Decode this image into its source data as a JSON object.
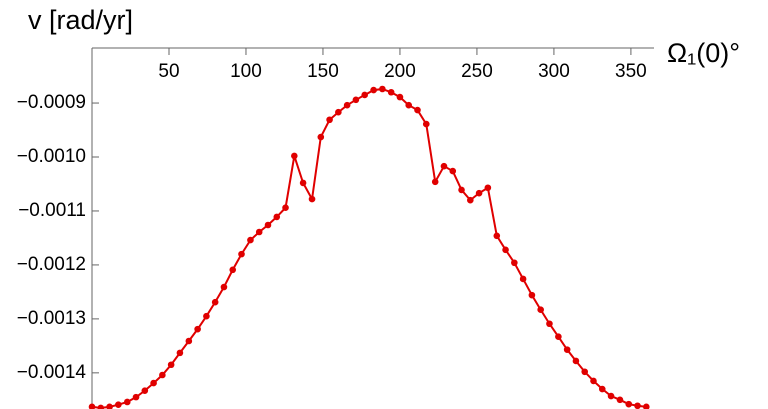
{
  "chart_data": {
    "type": "line",
    "ylabel": "v [rad/yr]",
    "xlabel": "Ω₁(0)°",
    "x": [
      0,
      5.7,
      11.4,
      17.1,
      22.9,
      28.6,
      34.3,
      40,
      45.7,
      51.4,
      57.1,
      62.9,
      68.6,
      74.3,
      80,
      85.7,
      91.4,
      97.1,
      102.9,
      108.6,
      114.3,
      120,
      125.7,
      131.4,
      137.1,
      142.9,
      148.6,
      154.3,
      160,
      165.7,
      171.4,
      177.1,
      182.9,
      188.6,
      194.3,
      200,
      205.7,
      211.4,
      217.1,
      222.9,
      228.6,
      234.3,
      240,
      245.7,
      251.4,
      257.1,
      262.9,
      268.6,
      274.3,
      280,
      285.7,
      291.4,
      297.1,
      302.9,
      308.6,
      314.3,
      320,
      325.7,
      331.4,
      337.1,
      342.9,
      348.6,
      354.3,
      360
    ],
    "series": [
      {
        "color": "#e00000",
        "values": [
          -0.001463,
          -0.001465,
          -0.001463,
          -0.001459,
          -0.001454,
          -0.001445,
          -0.001433,
          -0.001419,
          -0.001404,
          -0.001385,
          -0.001363,
          -0.001341,
          -0.001319,
          -0.001295,
          -0.001269,
          -0.001241,
          -0.001209,
          -0.00118,
          -0.001154,
          -0.001139,
          -0.001126,
          -0.001111,
          -0.001094,
          -0.000998,
          -0.001048,
          -0.001078,
          -0.000963,
          -0.000931,
          -0.000917,
          -0.000904,
          -0.000894,
          -0.000885,
          -0.000876,
          -0.000874,
          -0.00088,
          -0.000889,
          -0.000904,
          -0.000913,
          -0.000939,
          -0.001046,
          -0.001017,
          -0.001026,
          -0.001061,
          -0.00108,
          -0.001067,
          -0.001057,
          -0.001146,
          -0.001172,
          -0.001196,
          -0.001226,
          -0.001256,
          -0.001283,
          -0.001309,
          -0.001333,
          -0.001357,
          -0.001378,
          -0.001398,
          -0.001415,
          -0.00143,
          -0.001443,
          -0.00145,
          -0.001458,
          -0.001461,
          -0.001463
        ]
      }
    ],
    "xlim": [
      0,
      365
    ],
    "ylim": [
      -0.001467,
      -0.000798
    ],
    "xticks": [
      50,
      100,
      150,
      200,
      250,
      300,
      350
    ],
    "yticks": [
      {
        "value": -0.0009,
        "label": "−0.0009"
      },
      {
        "value": -0.001,
        "label": "−0.0010"
      },
      {
        "value": -0.0011,
        "label": "−0.0011"
      },
      {
        "value": -0.0012,
        "label": "−0.0012"
      },
      {
        "value": -0.0013,
        "label": "−0.0013"
      },
      {
        "value": -0.0014,
        "label": "−0.0014"
      }
    ],
    "grid": false
  }
}
